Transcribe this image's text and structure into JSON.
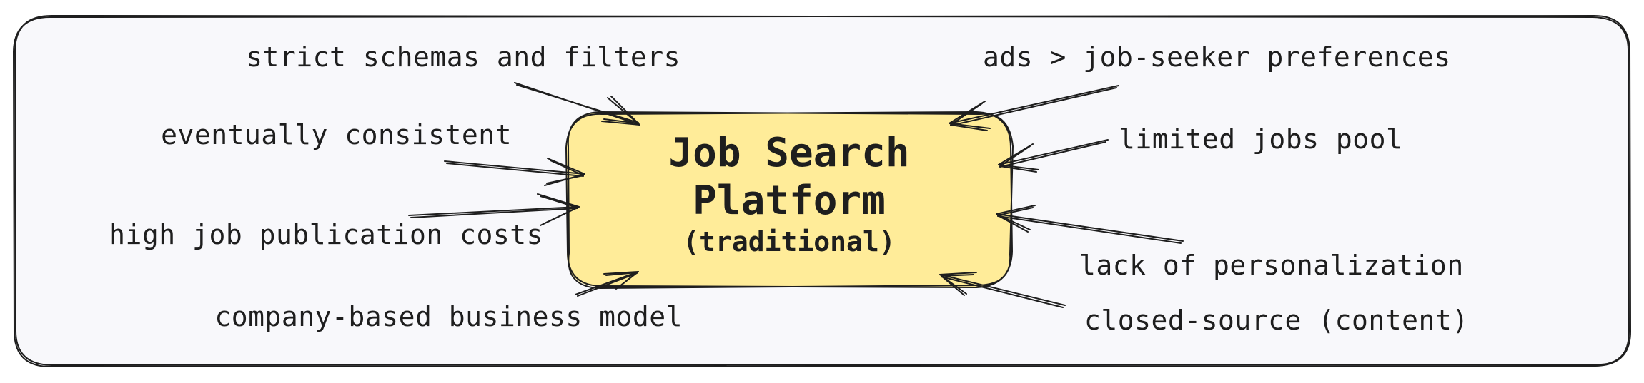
{
  "diagram": {
    "center": {
      "title_line1": "Job Search",
      "title_line2": "Platform",
      "subtitle": "(traditional)",
      "fill_color": "#ffec99"
    },
    "frame_color": "#f8f8fb",
    "labels": {
      "strict_schemas": "strict schemas and filters",
      "eventually_consistent": "eventually consistent",
      "high_costs": "high job publication costs",
      "company_model": "company-based business model",
      "ads": "ads > job-seeker preferences",
      "limited_pool": "limited jobs pool",
      "personalization": "lack of personalization",
      "closed_source": "closed-source (content)"
    }
  }
}
